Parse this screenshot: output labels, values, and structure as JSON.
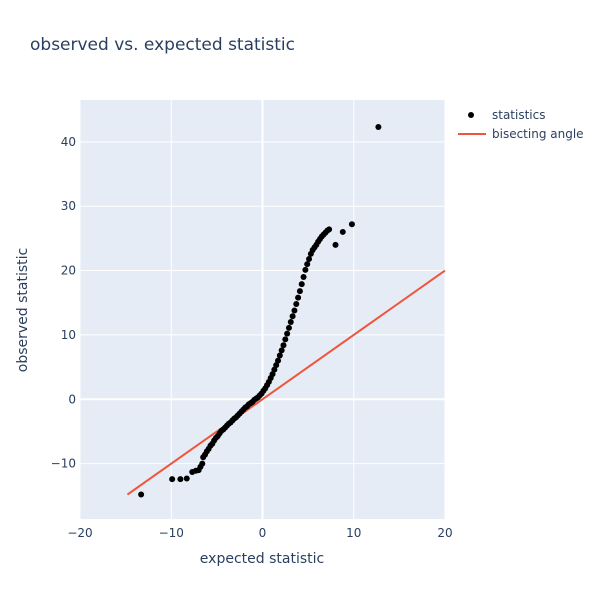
{
  "chart_data": {
    "type": "scatter",
    "title": "observed vs. expected statistic",
    "xlabel": "expected statistic",
    "ylabel": "observed statistic",
    "xlim": [
      -20,
      20
    ],
    "ylim": [
      -18.6,
      46.5
    ],
    "x_ticks": [
      -20,
      -10,
      0,
      10,
      20
    ],
    "y_ticks": [
      -10,
      0,
      10,
      20,
      30,
      40
    ],
    "x_tick_labels": [
      "−20",
      "−10",
      "0",
      "10",
      "20"
    ],
    "y_tick_labels": [
      "−10",
      "0",
      "10",
      "20",
      "30",
      "40"
    ],
    "grid": true,
    "legend_position": "top-right",
    "colors": {
      "plot_background": "#e5ecf6",
      "grid": "#ffffff",
      "points": "#000000",
      "line": "#ef553b",
      "text": "#2a3f5f"
    },
    "series": [
      {
        "name": "statistics",
        "mode": "markers",
        "x": [
          -13.3,
          -9.9,
          -9.0,
          -8.3,
          -7.7,
          -7.3,
          -7.0,
          -6.8,
          -6.6,
          -6.5,
          -6.3,
          -6.1,
          -5.9,
          -5.7,
          -5.5,
          -5.3,
          -5.1,
          -4.9,
          -4.7,
          -4.5,
          -4.3,
          -4.1,
          -3.9,
          -3.7,
          -3.5,
          -3.3,
          -3.1,
          -2.9,
          -2.7,
          -2.5,
          -2.3,
          -2.1,
          -1.9,
          -1.7,
          -1.5,
          -1.3,
          -1.1,
          -0.9,
          -0.7,
          -0.5,
          -0.3,
          -0.1,
          0.1,
          0.3,
          0.5,
          0.7,
          0.9,
          1.1,
          1.3,
          1.5,
          1.7,
          1.9,
          2.1,
          2.3,
          2.5,
          2.7,
          2.9,
          3.1,
          3.3,
          3.5,
          3.7,
          3.9,
          4.1,
          4.3,
          4.5,
          4.7,
          4.9,
          5.1,
          5.3,
          5.5,
          5.7,
          5.9,
          6.1,
          6.3,
          6.5,
          6.7,
          6.9,
          7.1,
          7.3,
          8.0,
          8.8,
          9.8,
          12.7
        ],
        "y": [
          -14.8,
          -12.4,
          -12.4,
          -12.3,
          -11.3,
          -11.1,
          -11.0,
          -10.5,
          -10.0,
          -9.0,
          -8.6,
          -8.1,
          -7.7,
          -7.2,
          -6.9,
          -6.4,
          -6.0,
          -5.7,
          -5.3,
          -4.9,
          -4.7,
          -4.4,
          -4.1,
          -3.8,
          -3.6,
          -3.3,
          -3.0,
          -2.8,
          -2.5,
          -2.2,
          -1.9,
          -1.6,
          -1.3,
          -1.1,
          -0.8,
          -0.6,
          -0.4,
          -0.1,
          0.1,
          0.3,
          0.6,
          0.9,
          1.3,
          1.7,
          2.2,
          2.7,
          3.3,
          3.9,
          4.6,
          5.3,
          6.0,
          6.8,
          7.6,
          8.4,
          9.3,
          10.2,
          11.1,
          12.0,
          12.9,
          13.8,
          14.8,
          15.8,
          16.8,
          17.9,
          19.0,
          20.1,
          21.0,
          21.8,
          22.6,
          23.2,
          23.6,
          24.0,
          24.5,
          24.9,
          25.3,
          25.6,
          25.9,
          26.2,
          26.4,
          24.0,
          26.0,
          27.2,
          42.3
        ]
      },
      {
        "name": "bisecting angle",
        "mode": "lines",
        "x": [
          -14.8,
          20
        ],
        "y": [
          -14.8,
          20
        ]
      }
    ]
  }
}
